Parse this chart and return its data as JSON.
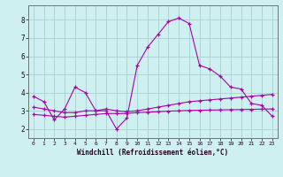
{
  "x": [
    0,
    1,
    2,
    3,
    4,
    5,
    6,
    7,
    8,
    9,
    10,
    11,
    12,
    13,
    14,
    15,
    16,
    17,
    18,
    19,
    20,
    21,
    22,
    23
  ],
  "line1": [
    3.8,
    3.5,
    2.5,
    3.1,
    4.3,
    4.0,
    3.0,
    3.0,
    2.0,
    2.6,
    5.5,
    6.5,
    7.2,
    7.9,
    8.1,
    7.8,
    5.5,
    5.3,
    4.9,
    4.3,
    4.2,
    3.4,
    3.3,
    2.7
  ],
  "line2": [
    3.2,
    3.1,
    3.0,
    2.9,
    2.9,
    3.0,
    3.0,
    3.1,
    3.0,
    2.95,
    3.0,
    3.1,
    3.2,
    3.3,
    3.4,
    3.5,
    3.55,
    3.6,
    3.65,
    3.7,
    3.75,
    3.8,
    3.85,
    3.9
  ],
  "line3": [
    2.8,
    2.75,
    2.7,
    2.65,
    2.7,
    2.75,
    2.8,
    2.85,
    2.85,
    2.85,
    2.9,
    2.92,
    2.95,
    2.98,
    3.0,
    3.02,
    3.03,
    3.04,
    3.05,
    3.06,
    3.07,
    3.08,
    3.09,
    3.1
  ],
  "bg_color": "#cff0f0",
  "grid_color": "#aacece",
  "line_color": "#aa00aa",
  "xlabel": "Windchill (Refroidissement éolien,°C)",
  "ylim": [
    1.5,
    8.8
  ],
  "xlim": [
    -0.5,
    23.5
  ],
  "yticks": [
    2,
    3,
    4,
    5,
    6,
    7,
    8
  ],
  "xticks": [
    0,
    1,
    2,
    3,
    4,
    5,
    6,
    7,
    8,
    9,
    10,
    11,
    12,
    13,
    14,
    15,
    16,
    17,
    18,
    19,
    20,
    21,
    22,
    23
  ]
}
